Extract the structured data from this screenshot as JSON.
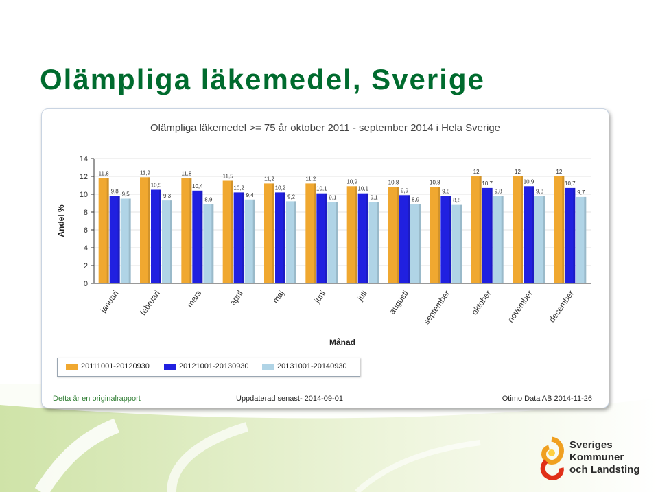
{
  "slide": {
    "title": "Olämpliga läkemedel, Sverige"
  },
  "chart_data": {
    "type": "bar",
    "title": "Olämpliga läkemedel >= 75 år oktober 2011 - september 2014 i Hela Sverige",
    "xlabel": "Månad",
    "ylabel": "Andel %",
    "ylim": [
      0,
      14
    ],
    "yticks": [
      0,
      2,
      4,
      6,
      8,
      10,
      12,
      14
    ],
    "grid": true,
    "legend_position": "bottom-left",
    "categories": [
      "januari",
      "februari",
      "mars",
      "april",
      "maj",
      "juni",
      "juli",
      "augusti",
      "september",
      "oktober",
      "november",
      "december"
    ],
    "series": [
      {
        "name": "20111001-20120930",
        "color": "#f0a830",
        "values": [
          11.8,
          11.9,
          11.8,
          11.5,
          11.2,
          11.2,
          10.9,
          10.8,
          10.8,
          12,
          12,
          12
        ]
      },
      {
        "name": "20121001-20130930",
        "color": "#2020e0",
        "values": [
          9.8,
          10.5,
          10.4,
          10.2,
          10.2,
          10.1,
          10.1,
          9.9,
          9.8,
          10.7,
          10.9,
          10.7
        ]
      },
      {
        "name": "20131001-20140930",
        "color": "#b0d4e6",
        "values": [
          9.5,
          9.3,
          8.9,
          9.4,
          9.2,
          9.1,
          9.1,
          8.9,
          8.8,
          9.8,
          9.8,
          9.7
        ]
      }
    ],
    "value_labels": [
      [
        "11,8",
        "11,9",
        "11,8",
        "11,5",
        "11,2",
        "11,2",
        "10,9",
        "10,8",
        "10,8",
        "12",
        "12",
        "12"
      ],
      [
        "9,8",
        "10,5",
        "10,4",
        "10,2",
        "10,2",
        "10,1",
        "10,1",
        "9,9",
        "9,8",
        "10,7",
        "10,9",
        "10,7"
      ],
      [
        "9,5",
        "9,3",
        "8,9",
        "9,4",
        "9,2",
        "9,1",
        "9,1",
        "8,9",
        "8,8",
        "9,8",
        "9,8",
        "9,7"
      ]
    ]
  },
  "footer": {
    "left": "Detta är en originalrapport",
    "middle": "Uppdaterad senast- 2014-09-01",
    "right": "Otimo Data AB 2014-11-26"
  },
  "logo": {
    "line1": "Sveriges",
    "line2": "Kommuner",
    "line3": "och Landsting"
  }
}
